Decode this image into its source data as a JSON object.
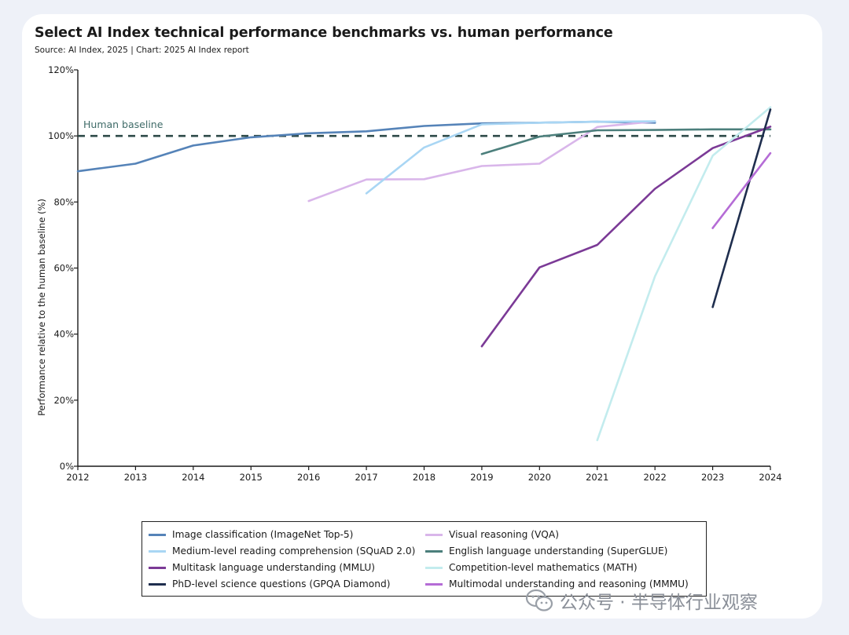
{
  "watermark": {
    "text": "公众号 · 半导体行业观察"
  },
  "colors": {
    "background": "#eef1f8",
    "card": "#ffffff",
    "baseline": "#2e4a48",
    "axis": "#1a1a1a"
  },
  "chart_data": {
    "type": "line",
    "title": "Select AI Index technical performance benchmarks vs. human performance",
    "subtitle": "Source: AI Index, 2025 | Chart: 2025 AI Index report",
    "xlabel": "",
    "ylabel": "Performance relative to the human baseline (%)",
    "xlim": [
      2012,
      2024
    ],
    "ylim": [
      0,
      120
    ],
    "x_ticks": [
      2012,
      2013,
      2014,
      2015,
      2016,
      2017,
      2018,
      2019,
      2020,
      2021,
      2022,
      2023,
      2024
    ],
    "y_ticks": [
      0,
      20,
      40,
      60,
      80,
      100,
      120
    ],
    "y_tick_labels": [
      "0%",
      "20%",
      "40%",
      "60%",
      "80%",
      "100%",
      "120%"
    ],
    "grid": false,
    "baseline": {
      "value": 100,
      "label": "Human baseline",
      "style": "dashed"
    },
    "legend_position": "bottom",
    "series": [
      {
        "name": "Image classification (ImageNet Top-5)",
        "color": "#5583b8",
        "points": [
          [
            2012,
            89.3
          ],
          [
            2013,
            91.6
          ],
          [
            2014,
            97.1
          ],
          [
            2015,
            99.6
          ],
          [
            2016,
            100.8
          ],
          [
            2017,
            101.4
          ],
          [
            2018,
            103.0
          ],
          [
            2019,
            103.8
          ],
          [
            2020,
            104.0
          ],
          [
            2021,
            104.3
          ],
          [
            2022,
            104.0
          ]
        ]
      },
      {
        "name": "Visual reasoning (VQA)",
        "color": "#d9b6ea",
        "points": [
          [
            2016,
            80.3
          ],
          [
            2017,
            86.8
          ],
          [
            2018,
            86.9
          ],
          [
            2019,
            90.9
          ],
          [
            2020,
            91.6
          ],
          [
            2021,
            102.7
          ],
          [
            2022,
            104.4
          ]
        ]
      },
      {
        "name": "Medium-level reading comprehension (SQuAD 2.0)",
        "color": "#a9d6f4",
        "points": [
          [
            2017,
            82.6
          ],
          [
            2018,
            96.5
          ],
          [
            2019,
            103.5
          ],
          [
            2020,
            104.0
          ],
          [
            2021,
            104.3
          ],
          [
            2022,
            104.4
          ]
        ]
      },
      {
        "name": "English language understanding (SuperGLUE)",
        "color": "#4c7f7c",
        "points": [
          [
            2019,
            94.5
          ],
          [
            2020,
            99.8
          ],
          [
            2021,
            101.7
          ],
          [
            2022,
            101.8
          ],
          [
            2023,
            102.0
          ],
          [
            2024,
            102.0
          ]
        ]
      },
      {
        "name": "Multitask language understanding (MMLU)",
        "color": "#7b3a96",
        "points": [
          [
            2019,
            36.3
          ],
          [
            2020,
            60.2
          ],
          [
            2021,
            67.0
          ],
          [
            2022,
            84.0
          ],
          [
            2023,
            96.3
          ],
          [
            2024,
            102.8
          ]
        ]
      },
      {
        "name": "Competition-level mathematics (MATH)",
        "color": "#c3ecee",
        "points": [
          [
            2021,
            7.9
          ],
          [
            2022,
            57.5
          ],
          [
            2023,
            94.0
          ],
          [
            2024,
            108.7
          ]
        ]
      },
      {
        "name": "PhD-level science questions (GPQA Diamond)",
        "color": "#1f2e4e",
        "points": [
          [
            2023,
            48.2
          ],
          [
            2024,
            108.0
          ]
        ]
      },
      {
        "name": "Multimodal understanding and reasoning (MMMU)",
        "color": "#b56cd6",
        "points": [
          [
            2023,
            72.1
          ],
          [
            2024,
            94.8
          ]
        ]
      }
    ],
    "legend_order": [
      "Image classification (ImageNet Top-5)",
      "Visual reasoning (VQA)",
      "Medium-level reading comprehension (SQuAD 2.0)",
      "English language understanding (SuperGLUE)",
      "Multitask language understanding (MMLU)",
      "Competition-level mathematics (MATH)",
      "PhD-level science questions (GPQA Diamond)",
      "Multimodal understanding and reasoning (MMMU)"
    ]
  }
}
